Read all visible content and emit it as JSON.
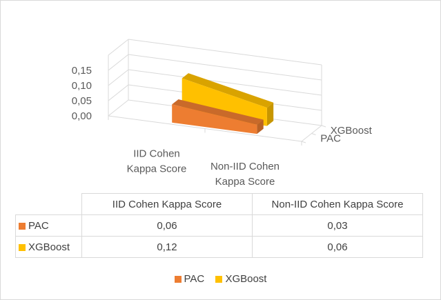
{
  "chart_data": {
    "type": "bar",
    "title": "",
    "categories": [
      "IID Cohen Kappa Score",
      "Non-IID Cohen Kappa Score"
    ],
    "category_axis_lines": [
      [
        "IID Cohen",
        "Kappa Score"
      ],
      [
        "Non-IID Cohen",
        "Kappa Score"
      ]
    ],
    "series": [
      {
        "name": "PAC",
        "values": [
          0.06,
          0.03
        ],
        "value_labels": [
          "0,06",
          "0,03"
        ],
        "color": "#ed7d31"
      },
      {
        "name": "XGBoost",
        "values": [
          0.12,
          0.06
        ],
        "value_labels": [
          "0,12",
          "0,06"
        ],
        "color": "#ffc000"
      }
    ],
    "y_ticks": [
      "0,00",
      "0,05",
      "0,10",
      "0,15"
    ],
    "ylim": [
      0,
      0.15
    ],
    "depth_axis": [
      "PAC",
      "XGBoost"
    ],
    "grid": true,
    "legend": "bottom",
    "data_table": true
  }
}
